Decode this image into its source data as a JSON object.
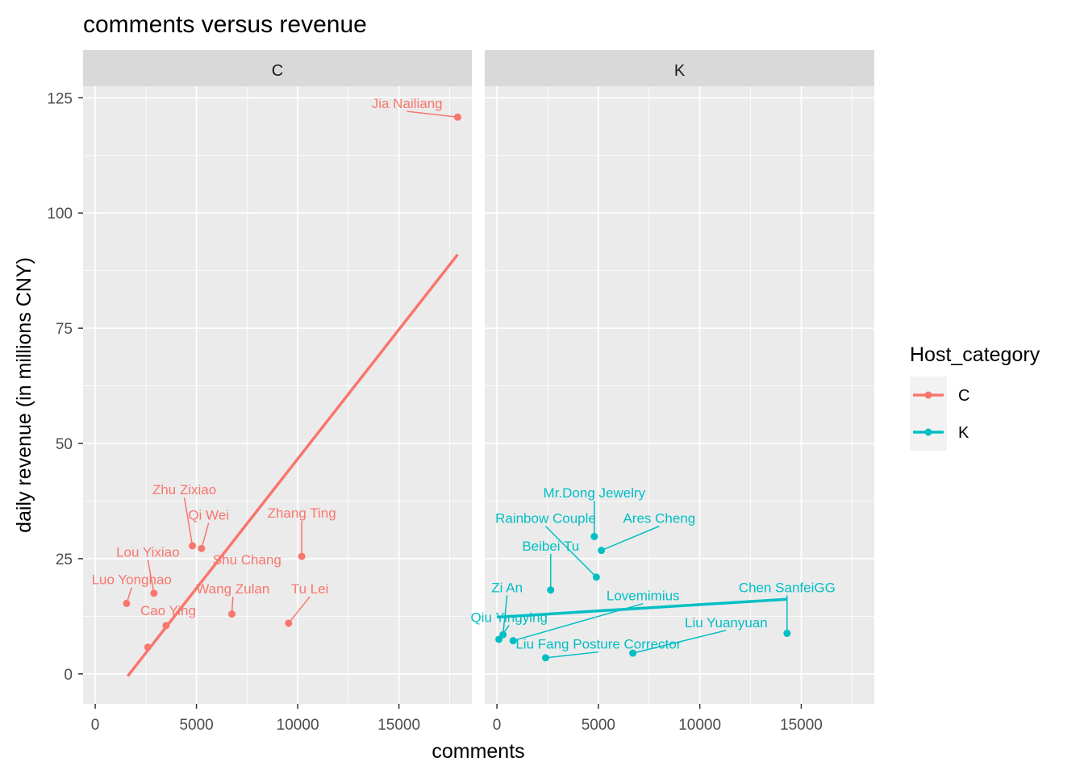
{
  "chart_data": {
    "type": "scatter",
    "title": "comments versus revenue",
    "xlabel": "comments",
    "ylabel": "daily revenue (in millions CNY)",
    "xlim": [
      -600,
      18600
    ],
    "ylim": [
      -6.5,
      127.5
    ],
    "x_ticks": [
      0,
      5000,
      10000,
      15000
    ],
    "x_tick_labels": [
      "0",
      "5000",
      "10000",
      "15000"
    ],
    "y_ticks": [
      0,
      25,
      50,
      75,
      100,
      125
    ],
    "y_tick_labels": [
      "0",
      "25",
      "50",
      "75",
      "100",
      "125"
    ],
    "grid": true,
    "legend": {
      "title": "Host_category",
      "position": "right",
      "entries": [
        {
          "label": "C",
          "color": "#F8766D"
        },
        {
          "label": "K",
          "color": "#00BFC4"
        }
      ]
    },
    "panels": [
      {
        "strip": "C",
        "color": "#F8766D",
        "trend": {
          "x": [
            1600,
            17900
          ],
          "y": [
            -0.5,
            91
          ]
        },
        "points": [
          {
            "x": 17900,
            "y": 120.8,
            "label": "Jia Nailiang",
            "lx": 15400,
            "ly": 123.8
          },
          {
            "x": 4800,
            "y": 27.8,
            "label": "Zhu Zixiao",
            "lx": 4400,
            "ly": 40.0
          },
          {
            "x": 5250,
            "y": 27.2,
            "label": "Qi Wei",
            "lx": 5600,
            "ly": 34.5
          },
          {
            "x": 10200,
            "y": 25.5,
            "label": "Zhang Ting",
            "lx": 10200,
            "ly": 35.0
          },
          {
            "x": 2900,
            "y": 17.5,
            "label": "Lou Yixiao",
            "lx": 2600,
            "ly": 26.5
          },
          {
            "x": 1550,
            "y": 15.3,
            "label": "Luo Yonghao",
            "lx": 1800,
            "ly": 20.5
          },
          {
            "x": 6750,
            "y": 13.0,
            "label": "Wang Zulan",
            "lx": 6800,
            "ly": 18.5
          },
          {
            "x": 9550,
            "y": 11.0,
            "label": "Tu Lei",
            "lx": 10600,
            "ly": 18.5
          },
          {
            "x": 7500,
            "y": 25.0,
            "label": "Shu Chang",
            "lx": 7500,
            "ly": 24.8,
            "point": false
          },
          {
            "x": 3500,
            "y": 10.5,
            "label": "Cao Ying",
            "lx": 3600,
            "ly": 13.8
          },
          {
            "x": 2600,
            "y": 5.8,
            "label": "",
            "lx": 2600,
            "ly": 5.8
          }
        ]
      },
      {
        "strip": "K",
        "color": "#00BFC4",
        "trend": {
          "x": [
            0,
            14300
          ],
          "y": [
            12.3,
            16.2
          ]
        },
        "points": [
          {
            "x": 4800,
            "y": 29.8,
            "label": "Mr.Dong Jewelry",
            "lx": 4800,
            "ly": 39.3
          },
          {
            "x": 5150,
            "y": 26.8,
            "label": "Ares Cheng",
            "lx": 8000,
            "ly": 33.8
          },
          {
            "x": 2650,
            "y": 18.2,
            "label": "Beibei Tu",
            "lx": 2650,
            "ly": 27.8
          },
          {
            "x": 4900,
            "y": 21.0,
            "label": "Rainbow Couple",
            "lx": 2400,
            "ly": 33.8
          },
          {
            "x": 14300,
            "y": 8.8,
            "label": "Chen SanfeiGG",
            "lx": 14300,
            "ly": 18.8
          },
          {
            "x": 300,
            "y": 8.5,
            "label": "Zi An",
            "lx": 500,
            "ly": 18.8
          },
          {
            "x": 800,
            "y": 7.2,
            "label": "Lovemimius",
            "lx": 7200,
            "ly": 17.0
          },
          {
            "x": 100,
            "y": 7.5,
            "label": "Qiu Yingying",
            "lx": 600,
            "ly": 12.3
          },
          {
            "x": 6700,
            "y": 4.5,
            "label": "Liu Yuanyuan",
            "lx": 11300,
            "ly": 11.2
          },
          {
            "x": 2400,
            "y": 3.5,
            "label": "Liu Fang Posture Corrector",
            "lx": 5000,
            "ly": 6.5
          }
        ]
      }
    ]
  }
}
